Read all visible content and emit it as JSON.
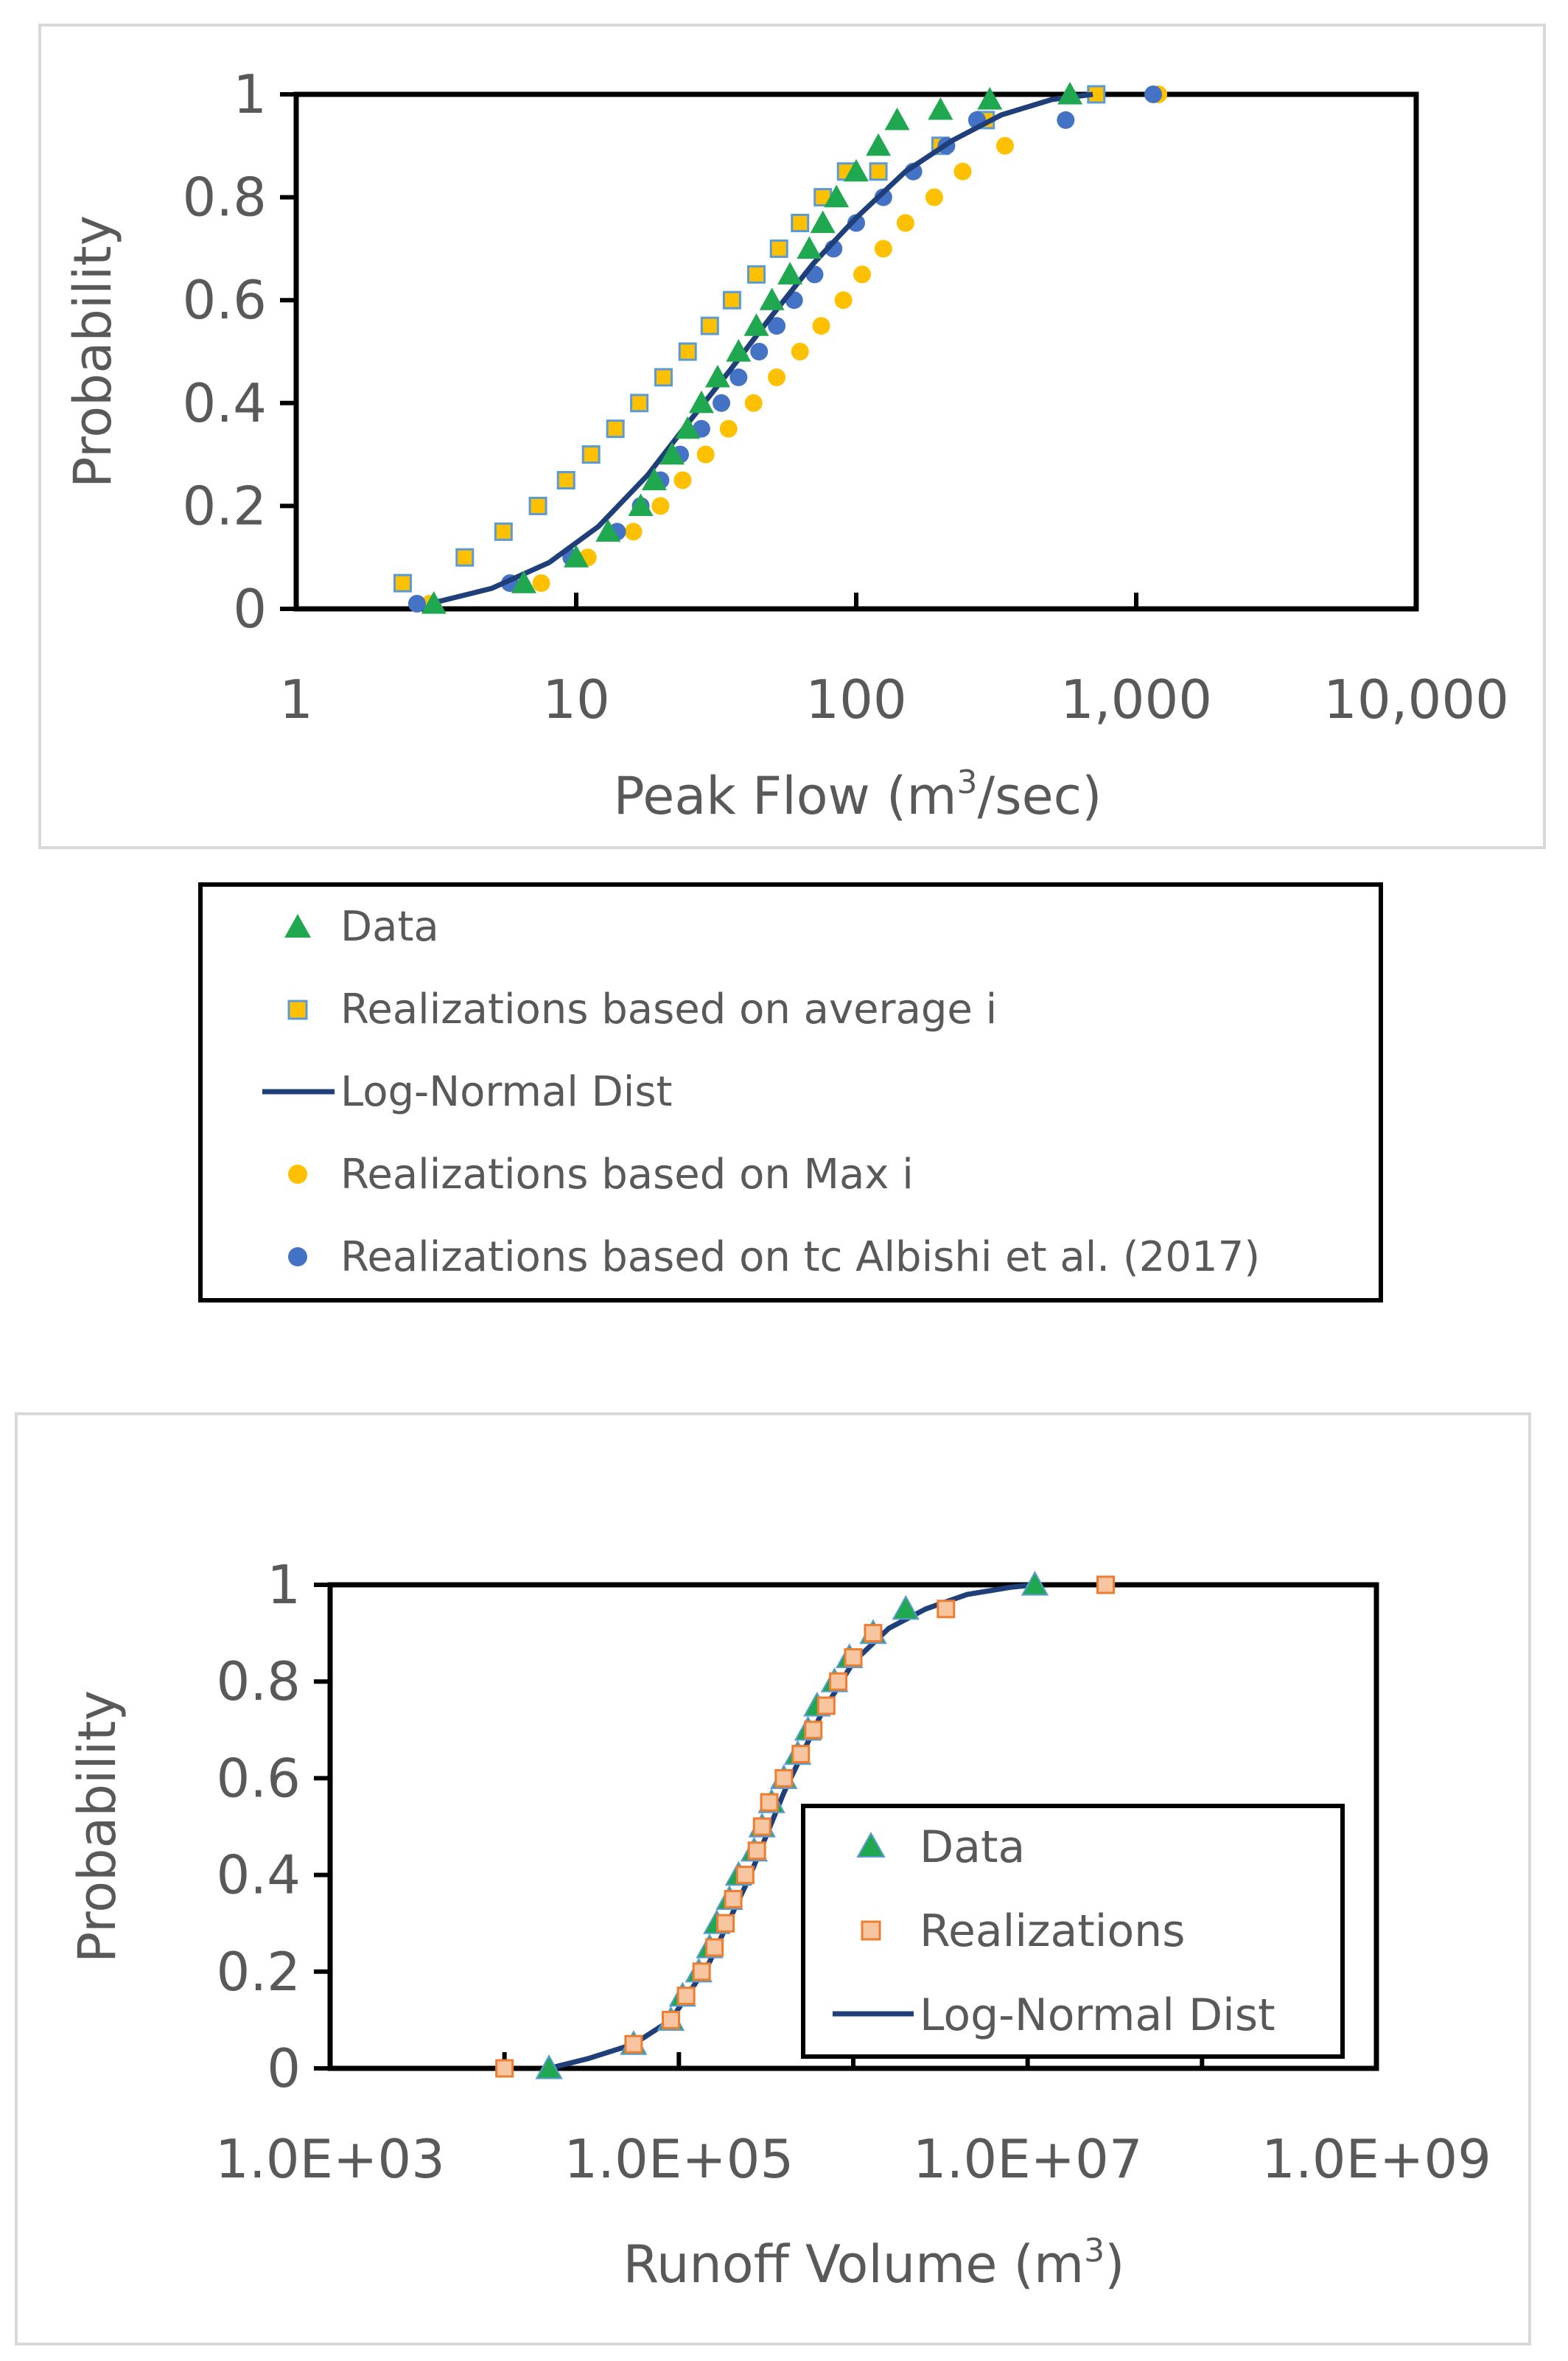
{
  "colors": {
    "data": "#1fa84f",
    "data_edge": "#5b9bd5",
    "avg_fill": "#ffc000",
    "avg_edge": "#5b9bd5",
    "lognormal": "#1f3f7a",
    "max": "#ffc000",
    "tc": "#4472c4",
    "real_fill": "#f7c59f",
    "real_edge": "#ed7d31",
    "text": "#595959",
    "frame": "#d9d9d9"
  },
  "chart_data": [
    {
      "type": "scatter",
      "title": "",
      "xlabel_main": "Peak Flow (m",
      "xlabel_sup": "3",
      "xlabel_end": "/sec)",
      "ylabel": "Probability",
      "xscale": "log",
      "xlim": [
        1,
        10000
      ],
      "ylim": [
        0,
        1
      ],
      "xtick_labels": [
        "1",
        "10",
        "100",
        "1,000",
        "10,000"
      ],
      "ytick_labels": [
        "0",
        "0.2",
        "0.4",
        "0.6",
        "0.8",
        "1"
      ],
      "legend_position": "below",
      "legend": [
        "Data",
        "Realizations based on average i",
        "Log-Normal Dist",
        "Realizations based on Max i",
        "Realizations based on tc Albishi et al. (2017)"
      ],
      "series": [
        {
          "name": "Data",
          "marker": "triangle",
          "x": [
            3.1,
            6.5,
            10,
            13,
            17,
            19,
            22,
            25,
            28,
            32,
            38,
            44,
            50,
            58,
            68,
            76,
            85,
            100,
            120,
            140,
            200,
            300,
            580
          ],
          "y": [
            0.01,
            0.05,
            0.1,
            0.15,
            0.2,
            0.25,
            0.3,
            0.35,
            0.4,
            0.45,
            0.5,
            0.55,
            0.6,
            0.65,
            0.7,
            0.75,
            0.8,
            0.85,
            0.9,
            0.95,
            0.97,
            0.99,
            1.0
          ]
        },
        {
          "name": "Realizations based on average i",
          "marker": "square",
          "x": [
            2.4,
            4,
            5.5,
            7.3,
            9.2,
            11.3,
            13.8,
            16.8,
            20.5,
            25,
            30,
            36,
            44,
            53,
            63,
            76,
            92,
            120,
            200,
            290,
            720
          ],
          "y": [
            0.05,
            0.1,
            0.15,
            0.2,
            0.25,
            0.3,
            0.35,
            0.4,
            0.45,
            0.5,
            0.55,
            0.6,
            0.65,
            0.7,
            0.75,
            0.8,
            0.85,
            0.85,
            0.9,
            0.95,
            1.0
          ]
        },
        {
          "name": "Log-Normal Dist",
          "marker": "line",
          "x": [
            3,
            5,
            8,
            12,
            18,
            25,
            35,
            50,
            70,
            100,
            150,
            220,
            330,
            500,
            700
          ],
          "y": [
            0.01,
            0.04,
            0.09,
            0.16,
            0.26,
            0.36,
            0.46,
            0.57,
            0.67,
            0.76,
            0.85,
            0.91,
            0.96,
            0.99,
            1.0
          ]
        },
        {
          "name": "Realizations based on Max i",
          "marker": "circle",
          "x": [
            3,
            7.5,
            11,
            16,
            20,
            24,
            29,
            35,
            43,
            52,
            63,
            75,
            90,
            105,
            125,
            150,
            190,
            240,
            340,
            1200
          ],
          "y": [
            0.01,
            0.05,
            0.1,
            0.15,
            0.2,
            0.25,
            0.3,
            0.35,
            0.4,
            0.45,
            0.5,
            0.55,
            0.6,
            0.65,
            0.7,
            0.75,
            0.8,
            0.85,
            0.9,
            1.0
          ]
        },
        {
          "name": "Realizations based on tc Albishi et al. (2017)",
          "marker": "circle",
          "x": [
            2.7,
            5.8,
            9.6,
            14,
            17,
            20,
            23.5,
            28,
            33,
            38,
            45,
            52,
            60,
            71,
            83,
            100,
            125,
            160,
            210,
            270,
            560,
            1150
          ],
          "y": [
            0.01,
            0.05,
            0.1,
            0.15,
            0.2,
            0.25,
            0.3,
            0.35,
            0.4,
            0.45,
            0.5,
            0.55,
            0.6,
            0.65,
            0.7,
            0.75,
            0.8,
            0.85,
            0.9,
            0.95,
            0.95,
            1.0
          ]
        }
      ]
    },
    {
      "type": "scatter",
      "title": "",
      "xlabel_main": "Runoff Volume (m",
      "xlabel_sup": "3",
      "xlabel_end": ")",
      "ylabel": "Probability",
      "xscale": "log",
      "xlim": [
        1000,
        1000000000
      ],
      "ylim": [
        0,
        1
      ],
      "xtick_labels": [
        "1.0E+03",
        "1.0E+05",
        "1.0E+07",
        "1.0E+09"
      ],
      "ytick_labels": [
        "0",
        "0.2",
        "0.4",
        "0.6",
        "0.8",
        "1"
      ],
      "legend_position": "inside-lower-right",
      "legend": [
        "Data",
        "Realizations",
        "Log-Normal Dist"
      ],
      "series": [
        {
          "name": "Data",
          "marker": "triangle",
          "x": [
            18000,
            55000,
            90000,
            105000,
            130000,
            150000,
            165000,
            195000,
            220000,
            270000,
            300000,
            340000,
            400000,
            480000,
            550000,
            620000,
            780000,
            950000,
            1300000,
            2000000,
            11000000
          ],
          "y": [
            0.0,
            0.05,
            0.1,
            0.15,
            0.2,
            0.25,
            0.3,
            0.35,
            0.4,
            0.45,
            0.5,
            0.55,
            0.6,
            0.65,
            0.7,
            0.75,
            0.8,
            0.85,
            0.9,
            0.95,
            1.0
          ]
        },
        {
          "name": "Realizations",
          "marker": "square",
          "x": [
            10000,
            55000,
            90000,
            110000,
            135000,
            160000,
            185000,
            205000,
            240000,
            280000,
            300000,
            330000,
            400000,
            500000,
            590000,
            700000,
            820000,
            1000000,
            1300000,
            3400000,
            28000000
          ],
          "y": [
            0.0,
            0.05,
            0.1,
            0.15,
            0.2,
            0.25,
            0.3,
            0.35,
            0.4,
            0.45,
            0.5,
            0.55,
            0.6,
            0.65,
            0.7,
            0.75,
            0.8,
            0.85,
            0.9,
            0.95,
            1.0
          ]
        },
        {
          "name": "Log-Normal Dist",
          "marker": "line",
          "x": [
            18000,
            30000,
            55000,
            90000,
            150000,
            250000,
            400000,
            650000,
            1000000,
            1600000,
            2600000,
            4500000,
            8000000,
            11000000
          ],
          "y": [
            0.0,
            0.02,
            0.05,
            0.1,
            0.22,
            0.39,
            0.57,
            0.73,
            0.84,
            0.91,
            0.95,
            0.98,
            0.995,
            1.0
          ]
        }
      ]
    }
  ]
}
